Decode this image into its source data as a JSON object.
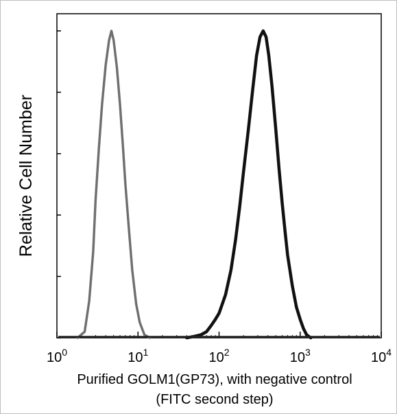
{
  "chart_data": {
    "type": "area",
    "title": "",
    "xlabel": "Purified GOLM1(GP73), with negative control",
    "xlabel_line2": "(FITC second step)",
    "ylabel": "Relative Cell Number",
    "xscale": "log",
    "xlim": [
      1,
      10000
    ],
    "ylim": [
      0,
      1
    ],
    "grid": false,
    "legend": "none",
    "x_ticks": [
      {
        "base": "10",
        "exp": "0",
        "value": 1
      },
      {
        "base": "10",
        "exp": "1",
        "value": 10
      },
      {
        "base": "10",
        "exp": "2",
        "value": 100
      },
      {
        "base": "10",
        "exp": "3",
        "value": 1000
      },
      {
        "base": "10",
        "exp": "4",
        "value": 10000
      }
    ],
    "y_ticks": [
      0,
      0.2,
      0.4,
      0.6,
      0.8,
      1.0
    ],
    "series": [
      {
        "role": "negative control",
        "color": "#6f6f6f",
        "style": "dotted",
        "x": [
          1.8,
          2.2,
          2.5,
          2.8,
          3.0,
          3.3,
          3.6,
          4.0,
          4.4,
          4.7,
          5.0,
          5.5,
          6.0,
          6.5,
          7.0,
          7.8,
          8.5,
          9.5,
          10.5,
          12.0,
          14.0
        ],
        "y": [
          0,
          0.02,
          0.12,
          0.28,
          0.45,
          0.62,
          0.76,
          0.89,
          0.97,
          1.0,
          0.97,
          0.88,
          0.76,
          0.63,
          0.5,
          0.34,
          0.22,
          0.11,
          0.05,
          0.01,
          0
        ]
      },
      {
        "role": "GOLM1 (GP73)",
        "color": "#111111",
        "style": "solid",
        "x": [
          40,
          50,
          60,
          70,
          80,
          90,
          100,
          120,
          140,
          160,
          180,
          200,
          230,
          260,
          290,
          320,
          350,
          380,
          410,
          450,
          500,
          550,
          600,
          650,
          700,
          800,
          900,
          1000,
          1100,
          1200,
          1350
        ],
        "y": [
          0,
          0.005,
          0.01,
          0.02,
          0.04,
          0.06,
          0.08,
          0.14,
          0.22,
          0.32,
          0.43,
          0.54,
          0.68,
          0.81,
          0.92,
          0.98,
          1.0,
          0.98,
          0.92,
          0.82,
          0.68,
          0.55,
          0.44,
          0.35,
          0.27,
          0.17,
          0.1,
          0.06,
          0.03,
          0.01,
          0
        ]
      }
    ]
  }
}
